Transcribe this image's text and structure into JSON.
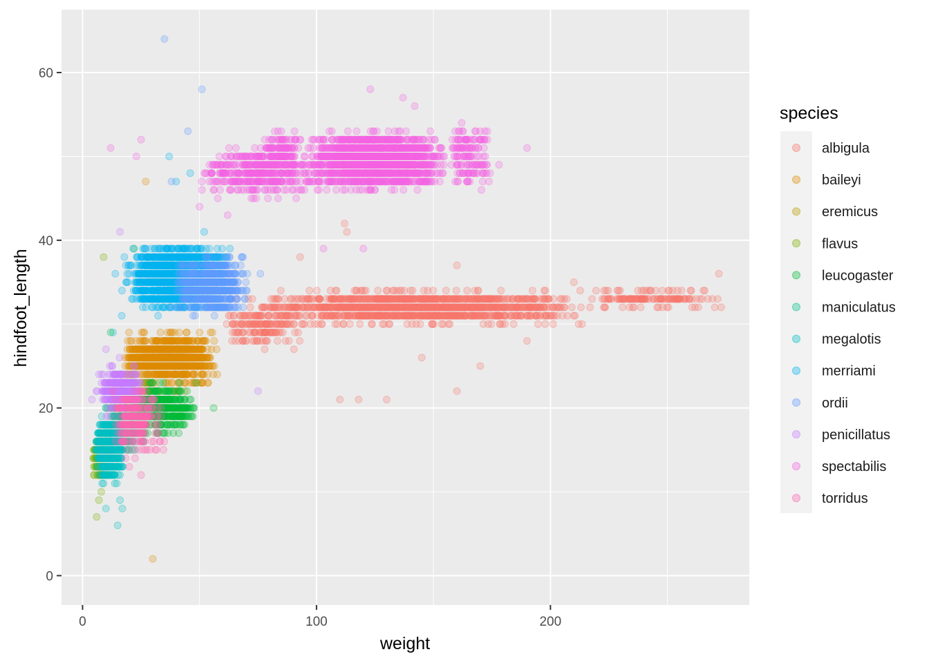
{
  "chart_data": {
    "type": "scatter",
    "xlabel": "weight",
    "ylabel": "hindfoot_length",
    "xlim": [
      -9,
      285
    ],
    "ylim": [
      -3.5,
      67.5
    ],
    "x_ticks": [
      0,
      100,
      200
    ],
    "x_tick_labels": [
      "0",
      "100",
      "200"
    ],
    "x_minor": [
      50,
      150,
      250
    ],
    "y_ticks": [
      0,
      20,
      40,
      60
    ],
    "y_tick_labels": [
      "0",
      "20",
      "40",
      "60"
    ],
    "y_minor": [
      10,
      30,
      50
    ],
    "grid": true,
    "point_opacity": 0.25,
    "legend": {
      "title": "species",
      "position": "right",
      "entries": [
        "albigula",
        "baileyi",
        "eremicus",
        "flavus",
        "leucogaster",
        "maniculatus",
        "megalotis",
        "merriami",
        "ordii",
        "penicillatus",
        "spectabilis",
        "torridus"
      ]
    },
    "colors": {
      "albigula": "#F8766D",
      "baileyi": "#DE8C00",
      "eremicus": "#B79F00",
      "flavus": "#7CAE00",
      "leucogaster": "#00BA38",
      "maniculatus": "#00C08B",
      "megalotis": "#00BFC4",
      "merriami": "#00B4F0",
      "ordii": "#619CFF",
      "penicillatus": "#C77CFF",
      "spectabilis": "#F564E3",
      "torridus": "#FF64B0"
    },
    "series": [
      {
        "name": "albigula",
        "clusters": [
          {
            "x": [
              75,
              215
            ],
            "y": [
              30,
              34
            ],
            "n": 1500
          },
          {
            "x": [
              215,
              275
            ],
            "y": [
              32,
              34
            ],
            "n": 150
          },
          {
            "x": [
              60,
              95
            ],
            "y": [
              27,
              33
            ],
            "n": 200
          }
        ],
        "points": [
          [
            93,
            38
          ],
          [
            160,
            37
          ],
          [
            170,
            25
          ],
          [
            145,
            26
          ],
          [
            110,
            21
          ],
          [
            118,
            21
          ],
          [
            130,
            21
          ],
          [
            160,
            22
          ],
          [
            112,
            42
          ],
          [
            113,
            41
          ],
          [
            210,
            35
          ],
          [
            190,
            28
          ],
          [
            272,
            36
          ]
        ]
      },
      {
        "name": "baileyi",
        "clusters": [
          {
            "x": [
              18,
              55
            ],
            "y": [
              24,
              28
            ],
            "n": 1300
          },
          {
            "x": [
              15,
              60
            ],
            "y": [
              21,
              30
            ],
            "n": 350
          }
        ],
        "points": [
          [
            30,
            2
          ],
          [
            27,
            47
          ],
          [
            20,
            21
          ]
        ]
      },
      {
        "name": "eremicus",
        "clusters": [
          {
            "x": [
              10,
              35
            ],
            "y": [
              17,
              23
            ],
            "n": 150
          }
        ],
        "points": []
      },
      {
        "name": "flavus",
        "clusters": [
          {
            "x": [
              4,
              12
            ],
            "y": [
              11,
              17
            ],
            "n": 180
          }
        ],
        "points": [
          [
            6,
            7
          ],
          [
            7,
            9
          ],
          [
            8,
            10
          ],
          [
            9,
            38
          ]
        ]
      },
      {
        "name": "leucogaster",
        "clusters": [
          {
            "x": [
              15,
              48
            ],
            "y": [
              18,
              22
            ],
            "n": 550
          },
          {
            "x": [
              12,
              52
            ],
            "y": [
              16,
              24
            ],
            "n": 150
          }
        ],
        "points": [
          [
            22,
            39
          ],
          [
            56,
            20
          ],
          [
            12,
            29
          ]
        ]
      },
      {
        "name": "maniculatus",
        "clusters": [
          {
            "x": [
              8,
              28
            ],
            "y": [
              14,
              21
            ],
            "n": 150
          }
        ],
        "points": []
      },
      {
        "name": "megalotis",
        "clusters": [
          {
            "x": [
              5,
              18
            ],
            "y": [
              11,
              19
            ],
            "n": 500
          }
        ],
        "points": [
          [
            16,
            9
          ],
          [
            17,
            8
          ],
          [
            15,
            6
          ],
          [
            10,
            8
          ],
          [
            13,
            29
          ]
        ]
      },
      {
        "name": "merriami",
        "clusters": [
          {
            "x": [
              22,
              62
            ],
            "y": [
              32,
              39
            ],
            "n": 2500
          },
          {
            "x": [
              15,
              66
            ],
            "y": [
              31,
              40
            ],
            "n": 400
          }
        ],
        "points": [
          [
            37,
            50
          ],
          [
            40,
            47
          ],
          [
            46,
            48
          ],
          [
            14,
            36
          ],
          [
            52,
            41
          ]
        ]
      },
      {
        "name": "ordii",
        "clusters": [
          {
            "x": [
              38,
              72
            ],
            "y": [
              31,
              38
            ],
            "n": 600
          }
        ],
        "points": [
          [
            35,
            64
          ],
          [
            51,
            58
          ],
          [
            45,
            53
          ],
          [
            38,
            47
          ],
          [
            76,
            36
          ]
        ]
      },
      {
        "name": "penicillatus",
        "clusters": [
          {
            "x": [
              8,
              25
            ],
            "y": [
              20,
              24
            ],
            "n": 400
          },
          {
            "x": [
              5,
              28
            ],
            "y": [
              18,
              26
            ],
            "n": 100
          }
        ],
        "points": [
          [
            75,
            22
          ],
          [
            16,
            41
          ],
          [
            10,
            27
          ],
          [
            4,
            21
          ]
        ]
      },
      {
        "name": "spectabilis",
        "clusters": [
          {
            "x": [
              95,
              155
            ],
            "y": [
              46,
              53
            ],
            "n": 1800
          },
          {
            "x": [
              50,
              100
            ],
            "y": [
              45,
              51
            ],
            "n": 450
          },
          {
            "x": [
              155,
              175
            ],
            "y": [
              46,
              54
            ],
            "n": 150
          },
          {
            "x": [
              75,
              95
            ],
            "y": [
              48,
              53
            ],
            "n": 150
          }
        ],
        "points": [
          [
            123,
            58
          ],
          [
            137,
            57
          ],
          [
            142,
            56
          ],
          [
            12,
            51
          ],
          [
            25,
            52
          ],
          [
            190,
            51
          ],
          [
            178,
            49
          ],
          [
            23,
            50
          ],
          [
            62,
            43
          ],
          [
            50,
            44
          ],
          [
            103,
            39
          ],
          [
            120,
            39
          ]
        ]
      },
      {
        "name": "torridus",
        "clusters": [
          {
            "x": [
              12,
              35
            ],
            "y": [
              14,
              23
            ],
            "n": 250
          }
        ],
        "points": [
          [
            25,
            12
          ],
          [
            20,
            13
          ],
          [
            33,
            16
          ],
          [
            24,
            15
          ]
        ]
      }
    ]
  }
}
